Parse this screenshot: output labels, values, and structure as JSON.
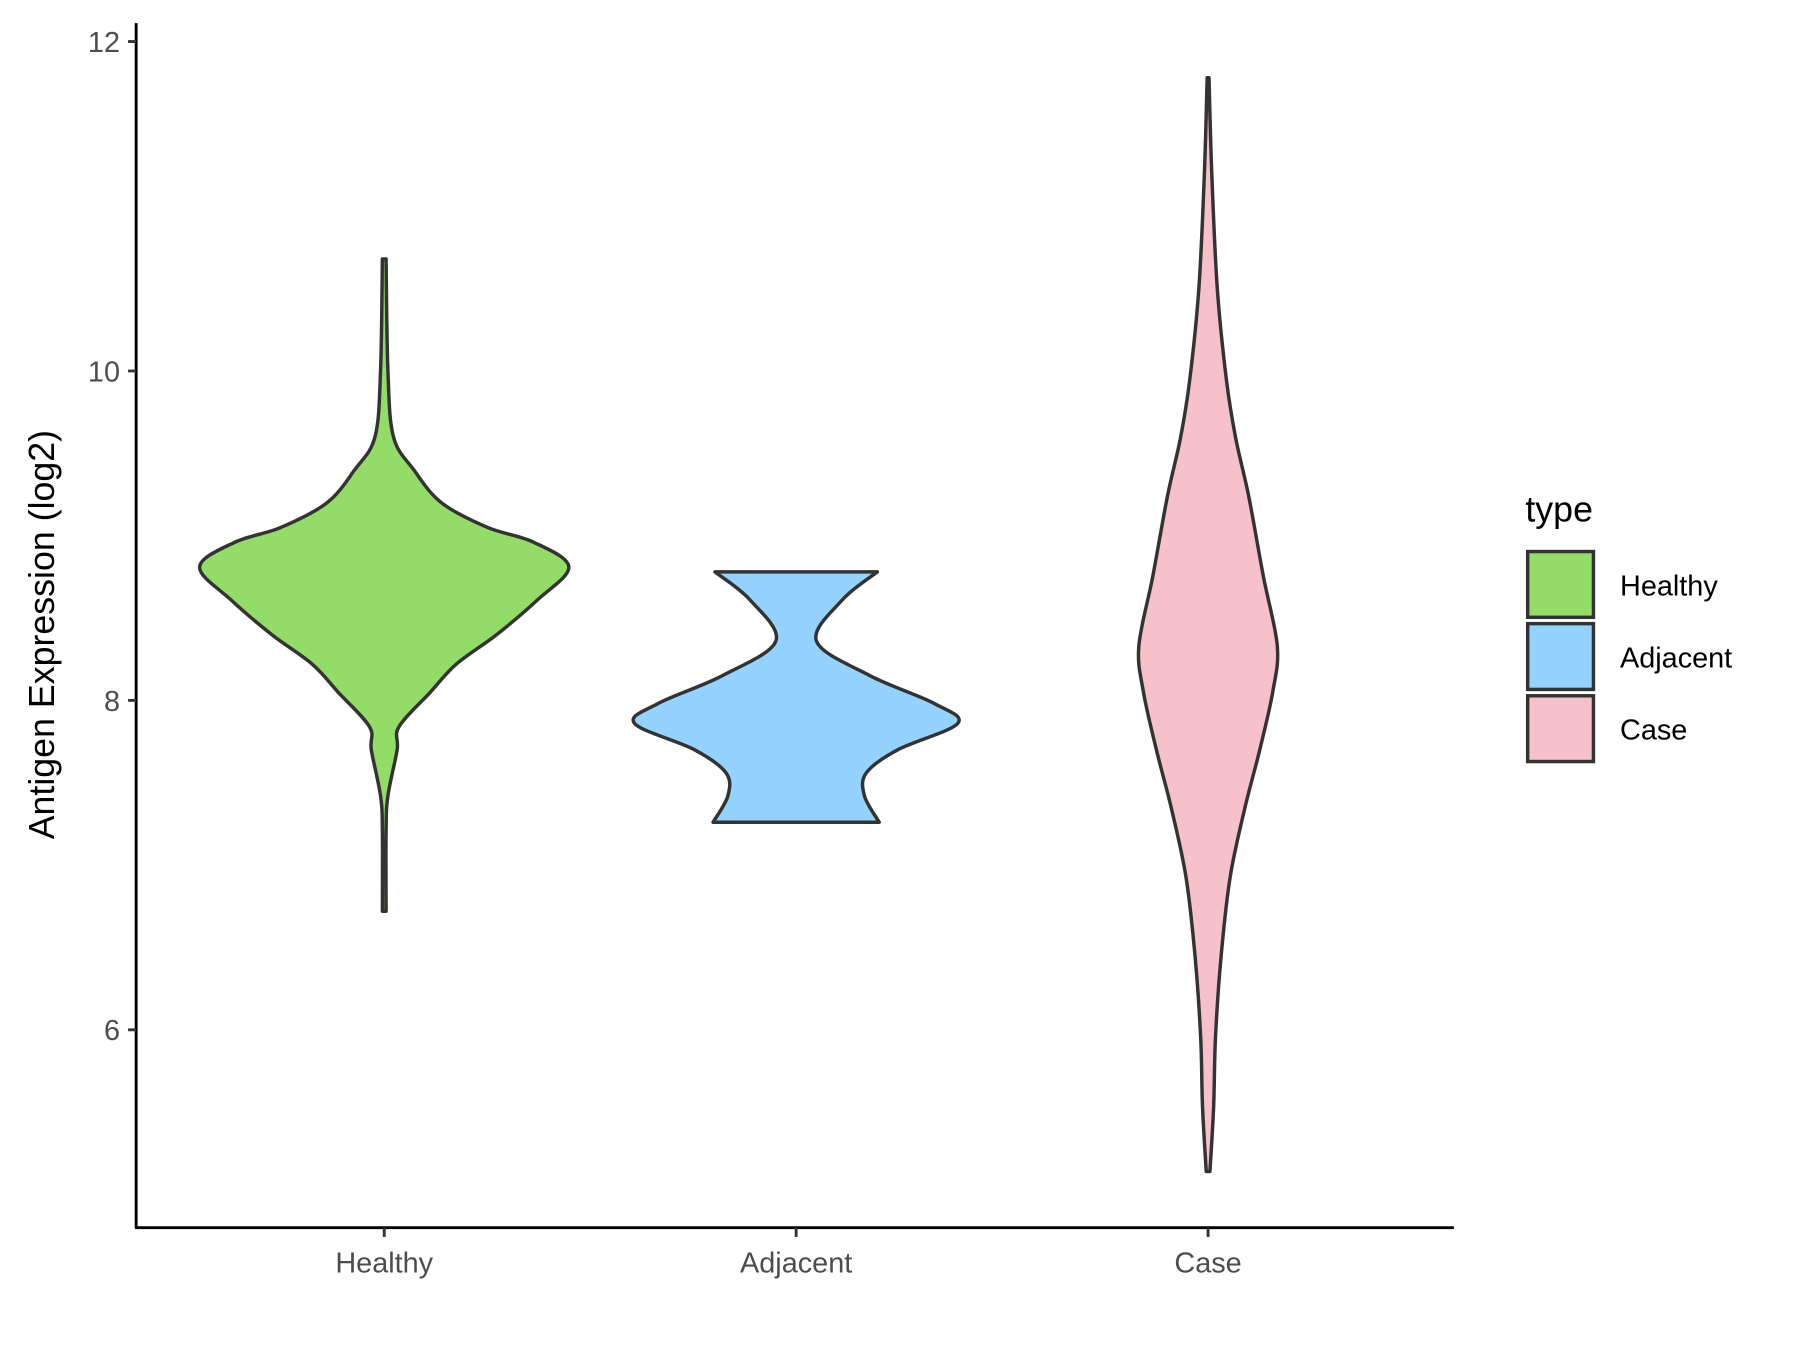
{
  "chart_data": {
    "type": "violin",
    "title": "",
    "xlabel": "",
    "ylabel": "Antigen Expression (log2)",
    "ylim": [
      4.9,
      12.1
    ],
    "yticks": [
      6,
      8,
      10,
      12
    ],
    "ytick_labels": [
      "6",
      "8",
      "10",
      "12"
    ],
    "categories": [
      "Healthy",
      "Adjacent",
      "Case"
    ],
    "grid": false,
    "legend": {
      "title": "type",
      "position": "right",
      "entries": [
        "Healthy",
        "Adjacent",
        "Case"
      ]
    },
    "series": [
      {
        "name": "Healthy",
        "color": "#93DC68",
        "y": [
          10.68,
          10.0,
          9.6,
          9.4,
          9.2,
          9.05,
          8.96,
          8.81,
          8.61,
          8.4,
          8.22,
          8.05,
          7.84,
          7.7,
          7.42,
          7.21,
          6.72
        ],
        "density": [
          0.01,
          0.02,
          0.05,
          0.16,
          0.31,
          0.56,
          0.81,
          1.0,
          0.83,
          0.61,
          0.39,
          0.25,
          0.08,
          0.07,
          0.02,
          0.01,
          0.01
        ]
      },
      {
        "name": "Adjacent",
        "color": "#94D3FF",
        "y": [
          8.78,
          8.61,
          8.36,
          8.15,
          7.98,
          7.86,
          7.7,
          7.56,
          7.42,
          7.26
        ],
        "density": [
          0.44,
          0.25,
          0.11,
          0.4,
          0.75,
          0.875,
          0.55,
          0.38,
          0.37,
          0.45
        ]
      },
      {
        "name": "Case",
        "color": "#F7C1CC",
        "y": [
          11.78,
          11.2,
          10.5,
          9.94,
          9.59,
          9.24,
          8.75,
          8.33,
          8.05,
          7.7,
          7.35,
          6.93,
          6.44,
          5.95,
          5.53,
          5.14
        ],
        "density": [
          0.005,
          0.02,
          0.05,
          0.1,
          0.15,
          0.22,
          0.3,
          0.375,
          0.35,
          0.28,
          0.2,
          0.12,
          0.07,
          0.04,
          0.03,
          0.01
        ]
      }
    ]
  }
}
